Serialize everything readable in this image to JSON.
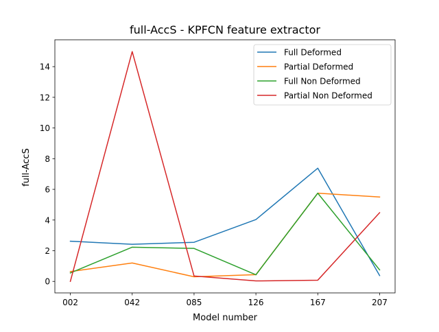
{
  "chart_data": {
    "type": "line",
    "title": "full-AccS - KPFCN feature extractor",
    "xlabel": "Model number",
    "ylabel": "full-AccS",
    "categories": [
      "002",
      "042",
      "085",
      "126",
      "167",
      "207"
    ],
    "ylim": [
      -0.75,
      15.75
    ],
    "yticks": [
      0,
      2,
      4,
      6,
      8,
      10,
      12,
      14
    ],
    "grid": false,
    "legend_position": "top-right",
    "series": [
      {
        "name": "Full Deformed",
        "color": "#1f77b4",
        "values": [
          2.62,
          2.42,
          2.55,
          4.03,
          7.38,
          0.38
        ]
      },
      {
        "name": "Partial Deformed",
        "color": "#ff7f0e",
        "values": [
          0.64,
          1.2,
          0.3,
          0.44,
          5.75,
          5.5
        ]
      },
      {
        "name": "Full Non Deformed",
        "color": "#2ca02c",
        "values": [
          0.55,
          2.23,
          2.15,
          0.43,
          5.75,
          0.75
        ]
      },
      {
        "name": "Partial Non Deformed",
        "color": "#d62728",
        "values": [
          0.0,
          14.98,
          0.35,
          0.03,
          0.08,
          4.48
        ]
      }
    ]
  }
}
